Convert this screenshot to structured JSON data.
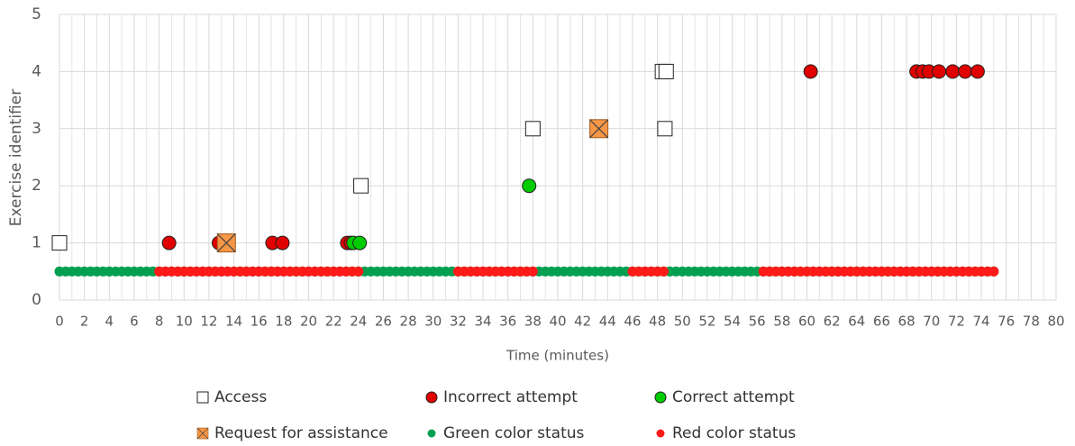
{
  "chart_data": {
    "type": "scatter",
    "xlabel": "Time (minutes)",
    "ylabel": "Exercise identifier",
    "xlim": [
      0,
      80
    ],
    "xticks": [
      0,
      2,
      4,
      6,
      8,
      10,
      12,
      14,
      16,
      18,
      20,
      22,
      24,
      26,
      28,
      30,
      32,
      34,
      36,
      38,
      40,
      42,
      44,
      46,
      48,
      50,
      52,
      54,
      56,
      58,
      60,
      62,
      64,
      66,
      68,
      70,
      72,
      74,
      76,
      78,
      80
    ],
    "ylim": [
      0,
      5
    ],
    "yticks": [
      0,
      1,
      2,
      3,
      4,
      5
    ],
    "grid": true,
    "series": [
      {
        "name": "Green color status",
        "color": "#00a050",
        "marker": "dot",
        "x": [
          0,
          0.5,
          1,
          1.5,
          2,
          2.5,
          3,
          3.5,
          4,
          4.5,
          5,
          5.5,
          6,
          6.5,
          7,
          7.5,
          8,
          8.5,
          9,
          9.5,
          10,
          10.5,
          11,
          11.5,
          12,
          12.5,
          13,
          13.5,
          14,
          14.5,
          15,
          15.5,
          16,
          16.5,
          17,
          17.5,
          18,
          18.5,
          19,
          19.5,
          20,
          20.5,
          21,
          21.5,
          22,
          22.5,
          23,
          23.5,
          24,
          24.5,
          25,
          25.5,
          26,
          26.5,
          27,
          27.5,
          28,
          28.5,
          29,
          29.5,
          30,
          30.5,
          31,
          31.5,
          32,
          32.5,
          33,
          33.5,
          34,
          34.5,
          35,
          35.5,
          36,
          36.5,
          37,
          37.5,
          38,
          38.5,
          39,
          39.5,
          40,
          40.5,
          41,
          41.5,
          42,
          42.5,
          43,
          43.5,
          44,
          44.5,
          45,
          45.5,
          46,
          46.5,
          47,
          47.5,
          48,
          48.5,
          49,
          49.5,
          50,
          50.5,
          51,
          51.5,
          52,
          52.5,
          53,
          53.5,
          54,
          54.5,
          55,
          55.5,
          56,
          56.5,
          57,
          57.5,
          58,
          58.5,
          59,
          59.5,
          60,
          60.5,
          61,
          61.5,
          62,
          62.5,
          63,
          63.5,
          64,
          64.5,
          65,
          65.5,
          66,
          66.5,
          67,
          67.5,
          68,
          68.5,
          69,
          69.5,
          70,
          70.5,
          71,
          71.5,
          72,
          72.5,
          73,
          73.5,
          74,
          74.5,
          75
        ],
        "y": [
          0.5,
          0.5,
          0.5,
          0.5,
          0.5,
          0.5,
          0.5,
          0.5,
          0.5,
          0.5,
          0.5,
          0.5,
          0.5,
          0.5,
          0.5,
          0.5,
          0.5,
          0.5,
          0.5,
          0.5,
          0.5,
          0.5,
          0.5,
          0.5,
          0.5,
          0.5,
          0.5,
          0.5,
          0.5,
          0.5,
          0.5,
          0.5,
          0.5,
          0.5,
          0.5,
          0.5,
          0.5,
          0.5,
          0.5,
          0.5,
          0.5,
          0.5,
          0.5,
          0.5,
          0.5,
          0.5,
          0.5,
          0.5,
          0.5,
          0.5,
          0.5,
          0.5,
          0.5,
          0.5,
          0.5,
          0.5,
          0.5,
          0.5,
          0.5,
          0.5,
          0.5,
          0.5,
          0.5,
          0.5,
          0.5,
          0.5,
          0.5,
          0.5,
          0.5,
          0.5,
          0.5,
          0.5,
          0.5,
          0.5,
          0.5,
          0.5,
          0.5,
          0.5,
          0.5,
          0.5,
          0.5,
          0.5,
          0.5,
          0.5,
          0.5,
          0.5,
          0.5,
          0.5,
          0.5,
          0.5,
          0.5,
          0.5,
          0.5,
          0.5,
          0.5,
          0.5,
          0.5,
          0.5,
          0.5,
          0.5,
          0.5,
          0.5,
          0.5,
          0.5,
          0.5,
          0.5,
          0.5,
          0.5,
          0.5,
          0.5,
          0.5,
          0.5,
          0.5,
          0.5,
          0.5,
          0.5,
          0.5,
          0.5,
          0.5,
          0.5,
          0.5,
          0.5,
          0.5,
          0.5,
          0.5,
          0.5,
          0.5,
          0.5,
          0.5,
          0.5,
          0.5,
          0.5,
          0.5,
          0.5,
          0.5,
          0.5,
          0.5,
          0.5,
          0.5,
          0.5,
          0.5,
          0.5,
          0.5,
          0.5,
          0.5,
          0.5,
          0.5,
          0.5,
          0.5,
          0.5,
          0.5
        ]
      },
      {
        "name": "Red color status",
        "color": "#ff1a1a",
        "marker": "dot",
        "x": [
          8,
          8.5,
          9,
          9.5,
          10,
          10.5,
          11,
          11.5,
          12,
          12.5,
          13,
          13.5,
          14,
          14.5,
          15,
          15.5,
          16,
          16.5,
          17,
          17.5,
          18,
          18.5,
          19,
          19.5,
          20,
          20.5,
          21,
          21.5,
          22,
          22.5,
          23,
          23.5,
          24,
          32,
          32.5,
          33,
          33.5,
          34,
          34.5,
          35,
          35.5,
          36,
          36.5,
          37,
          37.5,
          38,
          46,
          46.5,
          47,
          47.5,
          48,
          48.5,
          56.5,
          57,
          57.5,
          58,
          58.5,
          59,
          59.5,
          60,
          60.5,
          61,
          61.5,
          62,
          62.5,
          63,
          63.5,
          64,
          64.5,
          65,
          65.5,
          66,
          66.5,
          67,
          67.5,
          68,
          68.5,
          69,
          69.5,
          70,
          70.5,
          71,
          71.5,
          72,
          72.5,
          73,
          73.5,
          74,
          74.5,
          75
        ],
        "y": [
          0.5,
          0.5,
          0.5,
          0.5,
          0.5,
          0.5,
          0.5,
          0.5,
          0.5,
          0.5,
          0.5,
          0.5,
          0.5,
          0.5,
          0.5,
          0.5,
          0.5,
          0.5,
          0.5,
          0.5,
          0.5,
          0.5,
          0.5,
          0.5,
          0.5,
          0.5,
          0.5,
          0.5,
          0.5,
          0.5,
          0.5,
          0.5,
          0.5,
          0.5,
          0.5,
          0.5,
          0.5,
          0.5,
          0.5,
          0.5,
          0.5,
          0.5,
          0.5,
          0.5,
          0.5,
          0.5,
          0.5,
          0.5,
          0.5,
          0.5,
          0.5,
          0.5,
          0.5,
          0.5,
          0.5,
          0.5,
          0.5,
          0.5,
          0.5,
          0.5,
          0.5,
          0.5,
          0.5,
          0.5,
          0.5,
          0.5,
          0.5,
          0.5,
          0.5,
          0.5,
          0.5,
          0.5,
          0.5,
          0.5,
          0.5,
          0.5,
          0.5,
          0.5,
          0.5,
          0.5,
          0.5,
          0.5,
          0.5,
          0.5,
          0.5,
          0.5,
          0.5,
          0.5,
          0.5,
          0.5
        ]
      },
      {
        "name": "Access",
        "color": "#ffffff",
        "marker": "square",
        "x": [
          0,
          24.2,
          38,
          48.4,
          48.7,
          48.6
        ],
        "y": [
          1,
          2,
          3,
          4,
          4,
          3
        ]
      },
      {
        "name": "Incorrect attempt",
        "color": "#e00000",
        "marker": "circle",
        "x": [
          8.8,
          12.8,
          17.1,
          17.9,
          23.1,
          23.4,
          60.3,
          68.8,
          69.3,
          69.8,
          70.6,
          71.7,
          72.7,
          73.7
        ],
        "y": [
          1,
          1,
          1,
          1,
          1,
          1,
          4,
          4,
          4,
          4,
          4,
          4,
          4,
          4
        ]
      },
      {
        "name": "Correct attempt",
        "color": "#00cc00",
        "marker": "circle",
        "x": [
          23.6,
          24.1,
          37.7
        ],
        "y": [
          1,
          1,
          2
        ]
      },
      {
        "name": "Request for assistance",
        "color": "#f79646",
        "marker": "xsquare",
        "x": [
          13.4,
          43.3
        ],
        "y": [
          1,
          3
        ]
      }
    ],
    "legend_order": [
      "Access",
      "Incorrect attempt",
      "Correct attempt",
      "Request for assistance",
      "Green color status",
      "Red color status"
    ]
  }
}
